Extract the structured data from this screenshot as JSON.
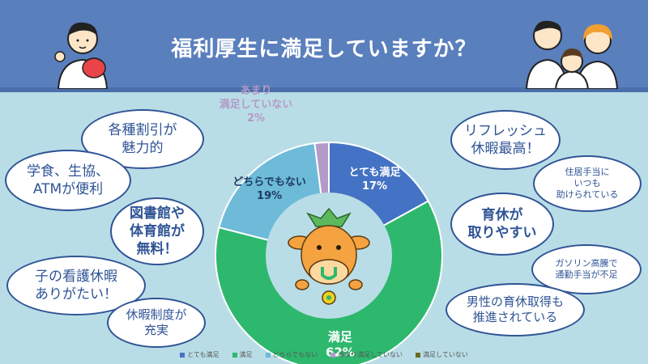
{
  "header": {
    "title": "福利厚生に満足していますか？"
  },
  "chart_data": {
    "type": "pie",
    "donut": true,
    "categories": [
      "とても満足",
      "満足",
      "どちらでもない",
      "あまり満足していない",
      "満足していない"
    ],
    "values": [
      17,
      62,
      19,
      2,
      0
    ],
    "colors": [
      "#4472c4",
      "#2eb86e",
      "#6dbbd9",
      "#b39ac8",
      "#6b6b1f"
    ],
    "data_labels": [
      {
        "name": "とても満足",
        "pct": "17%",
        "text_color": "#ffffff"
      },
      {
        "name": "満足",
        "pct": "62%",
        "text_color": "#ffffff"
      },
      {
        "name": "どちらでもない",
        "pct": "19%",
        "text_color": "#1f3b63"
      },
      {
        "name": "あまり\n満足していない",
        "pct": "2%",
        "text_color": "#b39ac8"
      }
    ],
    "legend": {
      "position": "bottom"
    }
  },
  "bubbles": {
    "left": [
      "各種割引が\n魅力的",
      "学食、生協、\nATMが便利",
      "図書館や\n体育館が\n無料！",
      "子の看護休暇\nありがたい！",
      "休暇制度が\n充実"
    ],
    "right": [
      "リフレッシュ\n休暇最高！",
      "住居手当に\nいつも\n助けられている",
      "育休が\n取りやすい",
      "ガソリン高騰で\n通勤手当が不足",
      "男性の育休取得も\n推進されている"
    ]
  }
}
